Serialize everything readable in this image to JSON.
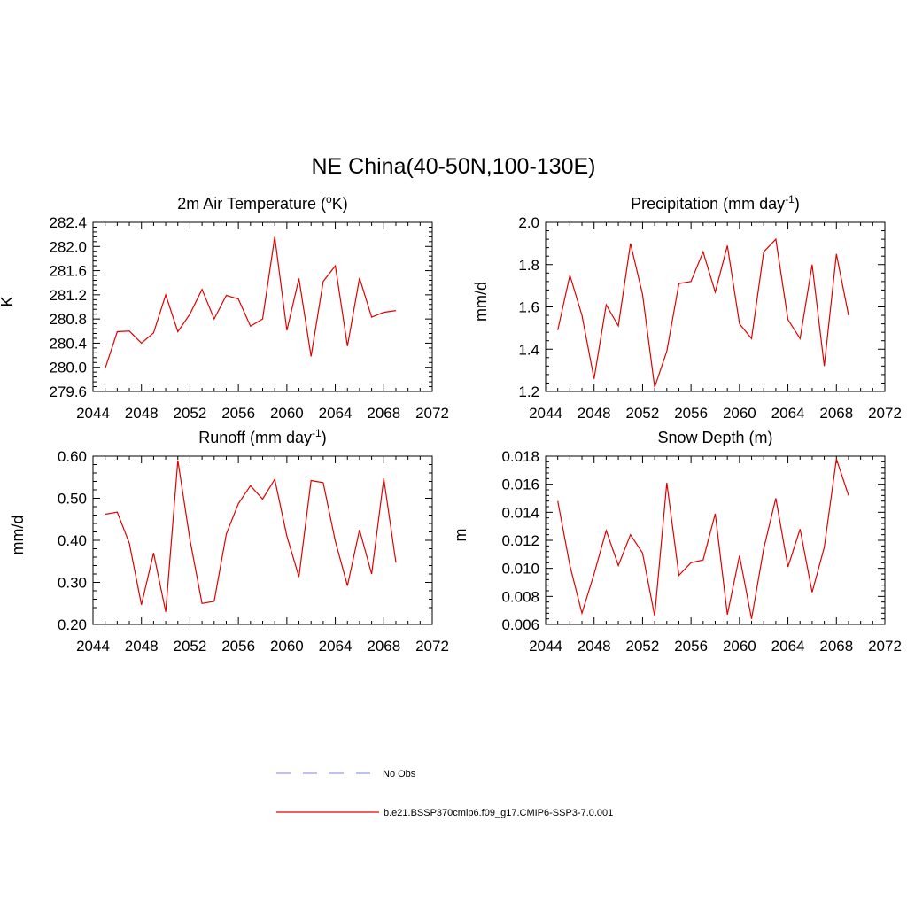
{
  "title": "NE China(40-50N,100-130E)",
  "colors": {
    "model_line": "#e00000",
    "obs_line": "#9999ee",
    "axis": "#000000"
  },
  "legend": [
    {
      "label": "No Obs",
      "style": "dashed",
      "color": "#9999ee"
    },
    {
      "label": "b.e21.BSSP370cmip6.f09_g17.CMIP6-SSP3-7.0.001",
      "style": "solid",
      "color": "#e00000"
    }
  ],
  "chart_data": [
    {
      "type": "line",
      "title_main": "2m Air Temperature (",
      "title_sup": "o",
      "title_rest": "K)",
      "ylabel": "K",
      "xlim": [
        2044,
        2072
      ],
      "ylim": [
        279.6,
        282.4
      ],
      "xticks": [
        "2044",
        "2048",
        "2052",
        "2056",
        "2060",
        "2064",
        "2068",
        "2072"
      ],
      "yticks": [
        "279.6",
        "280.0",
        "280.4",
        "280.8",
        "281.2",
        "281.6",
        "282.0",
        "282.4"
      ],
      "series": [
        {
          "x": [
            2045,
            2046,
            2047,
            2048,
            2049,
            2050,
            2051,
            2052,
            2053,
            2054,
            2055,
            2056,
            2057,
            2058,
            2059,
            2060,
            2061,
            2062,
            2063,
            2064,
            2065,
            2066,
            2067,
            2068,
            2069
          ],
          "values": [
            279.98,
            280.59,
            280.6,
            280.4,
            280.57,
            281.2,
            280.59,
            280.88,
            281.29,
            280.8,
            281.19,
            281.13,
            280.68,
            280.8,
            282.16,
            280.61,
            281.47,
            280.18,
            281.42,
            281.68,
            280.35,
            281.48,
            280.83,
            280.91,
            280.94
          ]
        }
      ]
    },
    {
      "type": "line",
      "title_main": "Precipitation (mm day",
      "title_sup": "-1",
      "title_rest": ")",
      "ylabel": "mm/d",
      "xlim": [
        2044,
        2072
      ],
      "ylim": [
        1.2,
        2.0
      ],
      "xticks": [
        "2044",
        "2048",
        "2052",
        "2056",
        "2060",
        "2064",
        "2068",
        "2072"
      ],
      "yticks": [
        "1.2",
        "1.4",
        "1.6",
        "1.8",
        "2.0"
      ],
      "series": [
        {
          "x": [
            2045,
            2046,
            2047,
            2048,
            2049,
            2050,
            2051,
            2052,
            2053,
            2054,
            2055,
            2056,
            2057,
            2058,
            2059,
            2060,
            2061,
            2062,
            2063,
            2064,
            2065,
            2066,
            2067,
            2068,
            2069
          ],
          "values": [
            1.49,
            1.75,
            1.56,
            1.26,
            1.61,
            1.51,
            1.9,
            1.66,
            1.22,
            1.39,
            1.71,
            1.72,
            1.86,
            1.67,
            1.89,
            1.52,
            1.45,
            1.86,
            1.92,
            1.54,
            1.45,
            1.8,
            1.32,
            1.85,
            1.56
          ]
        }
      ]
    },
    {
      "type": "line",
      "title_main": "Runoff (mm day",
      "title_sup": "-1",
      "title_rest": ")",
      "ylabel": "mm/d",
      "xlim": [
        2044,
        2072
      ],
      "ylim": [
        0.2,
        0.6
      ],
      "xticks": [
        "2044",
        "2048",
        "2052",
        "2056",
        "2060",
        "2064",
        "2068",
        "2072"
      ],
      "yticks": [
        "0.20",
        "0.30",
        "0.40",
        "0.50",
        "0.60"
      ],
      "series": [
        {
          "x": [
            2045,
            2046,
            2047,
            2048,
            2049,
            2050,
            2051,
            2052,
            2053,
            2054,
            2055,
            2056,
            2057,
            2058,
            2059,
            2060,
            2061,
            2062,
            2063,
            2064,
            2065,
            2066,
            2067,
            2068,
            2069
          ],
          "values": [
            0.462,
            0.467,
            0.393,
            0.247,
            0.37,
            0.23,
            0.59,
            0.402,
            0.25,
            0.255,
            0.415,
            0.487,
            0.53,
            0.498,
            0.545,
            0.41,
            0.313,
            0.542,
            0.537,
            0.398,
            0.292,
            0.425,
            0.32,
            0.547,
            0.347
          ]
        }
      ]
    },
    {
      "type": "line",
      "title_main": "Snow Depth (m)",
      "title_sup": "",
      "title_rest": "",
      "ylabel": "m",
      "xlim": [
        2044,
        2072
      ],
      "ylim": [
        0.006,
        0.018
      ],
      "xticks": [
        "2044",
        "2048",
        "2052",
        "2056",
        "2060",
        "2064",
        "2068",
        "2072"
      ],
      "yticks": [
        "0.006",
        "0.008",
        "0.010",
        "0.012",
        "0.014",
        "0.016",
        "0.018"
      ],
      "series": [
        {
          "x": [
            2045,
            2046,
            2047,
            2048,
            2049,
            2050,
            2051,
            2052,
            2053,
            2054,
            2055,
            2056,
            2057,
            2058,
            2059,
            2060,
            2061,
            2062,
            2063,
            2064,
            2065,
            2066,
            2067,
            2068,
            2069
          ],
          "values": [
            0.0148,
            0.0102,
            0.0068,
            0.0096,
            0.0127,
            0.0102,
            0.0124,
            0.0111,
            0.0066,
            0.0161,
            0.0095,
            0.0104,
            0.0106,
            0.0139,
            0.0067,
            0.0109,
            0.0064,
            0.0114,
            0.015,
            0.0101,
            0.0128,
            0.0083,
            0.0115,
            0.0178,
            0.0152
          ]
        }
      ]
    }
  ]
}
